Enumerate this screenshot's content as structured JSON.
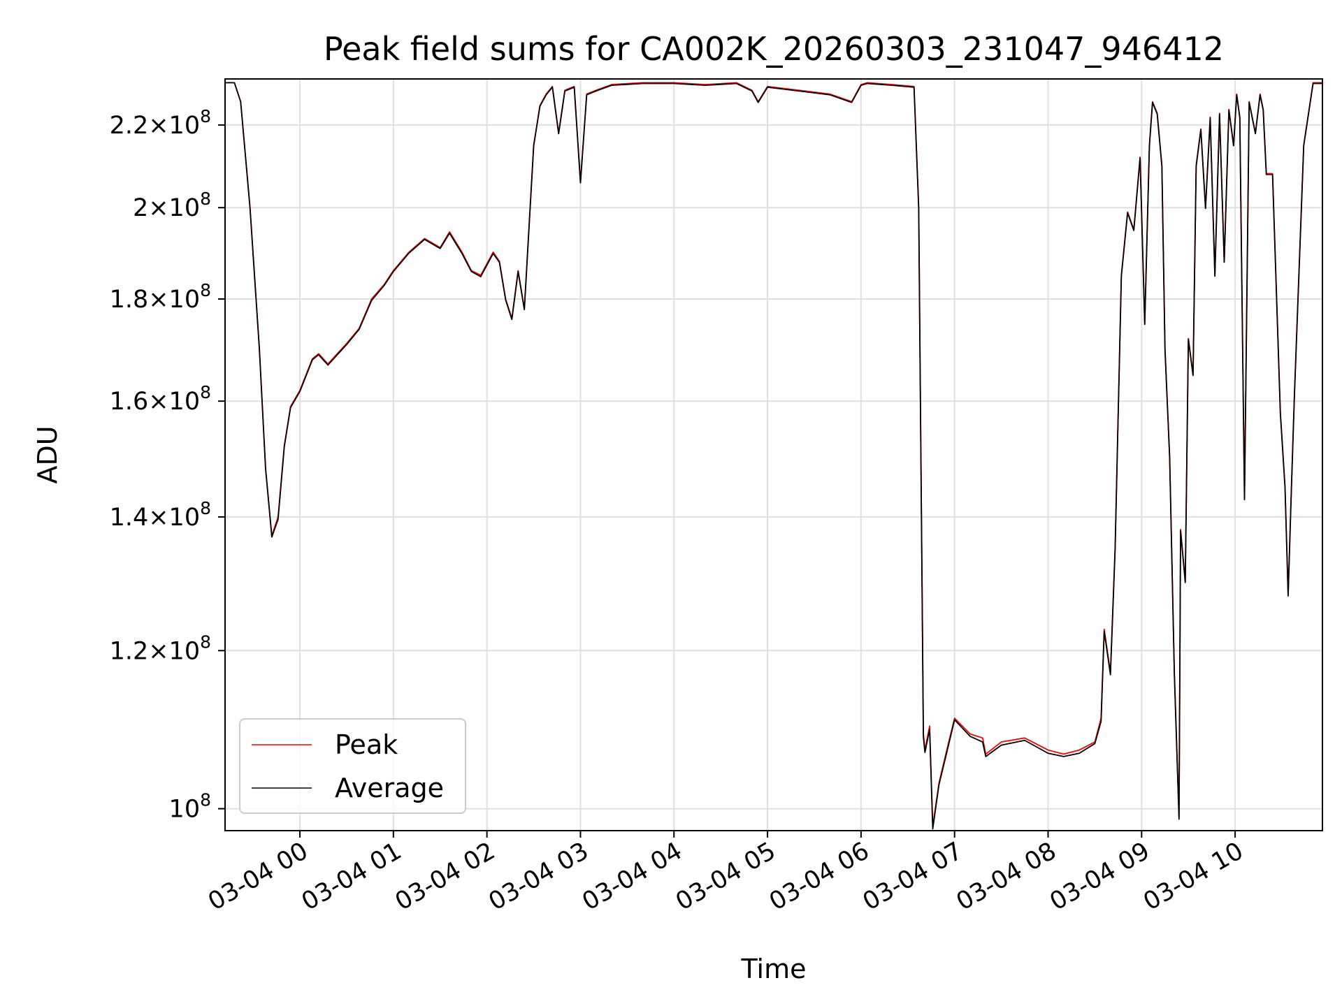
{
  "chart_data": {
    "type": "line",
    "title": "Peak field sums for CA002K_20260303_231047_946412",
    "xlabel": "Time",
    "ylabel": "ADU",
    "y_scale": "log",
    "ylim": [
      97500000,
      232000000
    ],
    "xlim": [
      "2026-03-03 23:12",
      "2026-03-04 10:56"
    ],
    "grid": true,
    "legend_position": "lower-left",
    "x_ticks": [
      "03-04 00",
      "03-04 01",
      "03-04 02",
      "03-04 03",
      "03-04 04",
      "03-04 05",
      "03-04 06",
      "03-04 07",
      "03-04 08",
      "03-04 09",
      "03-04 10"
    ],
    "x_tick_times": [
      "2026-03-04 00:00",
      "2026-03-04 01:00",
      "2026-03-04 02:00",
      "2026-03-04 03:00",
      "2026-03-04 04:00",
      "2026-03-04 05:00",
      "2026-03-04 06:00",
      "2026-03-04 07:00",
      "2026-03-04 08:00",
      "2026-03-04 09:00",
      "2026-03-04 10:00"
    ],
    "y_ticks": [
      {
        "value": 100000000,
        "mantissa": "",
        "exponent": "8"
      },
      {
        "value": 120000000,
        "mantissa": "1.2",
        "exponent": "8"
      },
      {
        "value": 140000000,
        "mantissa": "1.4",
        "exponent": "8"
      },
      {
        "value": 160000000,
        "mantissa": "1.6",
        "exponent": "8"
      },
      {
        "value": 180000000,
        "mantissa": "1.8",
        "exponent": "8"
      },
      {
        "value": 200000000,
        "mantissa": "2",
        "exponent": "8"
      },
      {
        "value": 220000000,
        "mantissa": "2.2",
        "exponent": "8"
      }
    ],
    "series": [
      {
        "name": "Peak",
        "color": "#ff0000",
        "x": [
          "2026-03-03 23:12",
          "2026-03-03 23:18",
          "2026-03-03 23:22",
          "2026-03-03 23:28",
          "2026-03-03 23:34",
          "2026-03-03 23:38",
          "2026-03-03 23:42",
          "2026-03-03 23:46",
          "2026-03-03 23:50",
          "2026-03-03 23:54",
          "2026-03-04 00:00",
          "2026-03-04 00:08",
          "2026-03-04 00:12",
          "2026-03-04 00:18",
          "2026-03-04 00:24",
          "2026-03-04 00:30",
          "2026-03-04 00:38",
          "2026-03-04 00:46",
          "2026-03-04 00:54",
          "2026-03-04 01:00",
          "2026-03-04 01:10",
          "2026-03-04 01:20",
          "2026-03-04 01:30",
          "2026-03-04 01:36",
          "2026-03-04 01:44",
          "2026-03-04 01:50",
          "2026-03-04 01:56",
          "2026-03-04 02:04",
          "2026-03-04 02:08",
          "2026-03-04 02:12",
          "2026-03-04 02:16",
          "2026-03-04 02:20",
          "2026-03-04 02:24",
          "2026-03-04 02:30",
          "2026-03-04 02:34",
          "2026-03-04 02:38",
          "2026-03-04 02:42",
          "2026-03-04 02:46",
          "2026-03-04 02:50",
          "2026-03-04 02:56",
          "2026-03-04 03:00",
          "2026-03-04 03:04",
          "2026-03-04 03:10",
          "2026-03-04 03:20",
          "2026-03-04 03:40",
          "2026-03-04 04:00",
          "2026-03-04 04:20",
          "2026-03-04 04:40",
          "2026-03-04 04:50",
          "2026-03-04 04:54",
          "2026-03-04 05:00",
          "2026-03-04 05:20",
          "2026-03-04 05:40",
          "2026-03-04 05:54",
          "2026-03-04 06:00",
          "2026-03-04 06:04",
          "2026-03-04 06:20",
          "2026-03-04 06:34",
          "2026-03-04 06:37",
          "2026-03-04 06:40",
          "2026-03-04 06:41",
          "2026-03-04 06:44",
          "2026-03-04 06:46",
          "2026-03-04 06:50",
          "2026-03-04 06:55",
          "2026-03-04 07:00",
          "2026-03-04 07:10",
          "2026-03-04 07:18",
          "2026-03-04 07:20",
          "2026-03-04 07:30",
          "2026-03-04 07:45",
          "2026-03-04 08:00",
          "2026-03-04 08:10",
          "2026-03-04 08:20",
          "2026-03-04 08:30",
          "2026-03-04 08:34",
          "2026-03-04 08:36",
          "2026-03-04 08:40",
          "2026-03-04 08:43",
          "2026-03-04 08:47",
          "2026-03-04 08:51",
          "2026-03-04 08:55",
          "2026-03-04 08:59",
          "2026-03-04 09:02",
          "2026-03-04 09:05",
          "2026-03-04 09:07",
          "2026-03-04 09:10",
          "2026-03-04 09:13",
          "2026-03-04 09:15",
          "2026-03-04 09:18",
          "2026-03-04 09:21",
          "2026-03-04 09:24",
          "2026-03-04 09:25",
          "2026-03-04 09:28",
          "2026-03-04 09:30",
          "2026-03-04 09:33",
          "2026-03-04 09:35",
          "2026-03-04 09:38",
          "2026-03-04 09:41",
          "2026-03-04 09:44",
          "2026-03-04 09:47",
          "2026-03-04 09:50",
          "2026-03-04 09:53",
          "2026-03-04 09:56",
          "2026-03-04 09:59",
          "2026-03-04 10:01",
          "2026-03-04 10:03",
          "2026-03-04 10:06",
          "2026-03-04 10:09",
          "2026-03-04 10:13",
          "2026-03-04 10:16",
          "2026-03-04 10:18",
          "2026-03-04 10:20",
          "2026-03-04 10:24",
          "2026-03-04 10:29",
          "2026-03-04 10:32",
          "2026-03-04 10:34",
          "2026-03-04 10:36",
          "2026-03-04 10:38",
          "2026-03-04 10:44",
          "2026-03-04 10:50",
          "2026-03-04 10:56"
        ],
        "y": [
          231000000,
          231000000,
          226000000,
          200000000,
          170000000,
          148000000,
          137000000,
          140000000,
          152000000,
          159000000,
          162000000,
          168000000,
          169000000,
          167000000,
          169000000,
          171000000,
          174000000,
          180000000,
          183000000,
          186000000,
          190000000,
          193000000,
          191000000,
          194500000,
          190000000,
          186000000,
          185000000,
          190000000,
          188000000,
          180000000,
          176000000,
          186000000,
          178000000,
          215000000,
          225000000,
          228000000,
          230000000,
          218000000,
          229000000,
          230000000,
          206000000,
          228000000,
          229000000,
          230500000,
          231000000,
          231000000,
          230500000,
          231000000,
          229000000,
          226000000,
          230000000,
          229000000,
          228000000,
          226000000,
          230500000,
          231000000,
          230500000,
          230000000,
          200000000,
          109000000,
          107000000,
          110000000,
          98000000,
          103000000,
          107000000,
          111000000,
          109000000,
          108500000,
          106500000,
          108000000,
          108500000,
          107000000,
          106500000,
          107000000,
          108000000,
          111000000,
          123000000,
          117000000,
          135000000,
          185000000,
          199000000,
          195000000,
          212000000,
          175000000,
          215000000,
          226000000,
          223000000,
          210000000,
          170000000,
          150000000,
          117000000,
          99000000,
          138000000,
          130000000,
          172000000,
          165000000,
          210000000,
          219000000,
          200000000,
          222000000,
          185000000,
          223000000,
          188000000,
          224000000,
          215000000,
          228000000,
          222000000,
          143000000,
          226000000,
          218000000,
          228000000,
          224000000,
          208000000,
          208000000,
          158000000,
          145000000,
          128000000,
          144000000,
          161000000,
          215000000,
          231000000,
          231000000
        ]
      },
      {
        "name": "Average",
        "color": "#000000",
        "x": [
          "2026-03-03 23:12",
          "2026-03-03 23:18",
          "2026-03-03 23:22",
          "2026-03-03 23:28",
          "2026-03-03 23:34",
          "2026-03-03 23:38",
          "2026-03-03 23:42",
          "2026-03-03 23:46",
          "2026-03-03 23:50",
          "2026-03-03 23:54",
          "2026-03-04 00:00",
          "2026-03-04 00:08",
          "2026-03-04 00:12",
          "2026-03-04 00:18",
          "2026-03-04 00:24",
          "2026-03-04 00:30",
          "2026-03-04 00:38",
          "2026-03-04 00:46",
          "2026-03-04 00:54",
          "2026-03-04 01:00",
          "2026-03-04 01:10",
          "2026-03-04 01:20",
          "2026-03-04 01:30",
          "2026-03-04 01:36",
          "2026-03-04 01:44",
          "2026-03-04 01:50",
          "2026-03-04 01:56",
          "2026-03-04 02:04",
          "2026-03-04 02:08",
          "2026-03-04 02:12",
          "2026-03-04 02:16",
          "2026-03-04 02:20",
          "2026-03-04 02:24",
          "2026-03-04 02:30",
          "2026-03-04 02:34",
          "2026-03-04 02:38",
          "2026-03-04 02:42",
          "2026-03-04 02:46",
          "2026-03-04 02:50",
          "2026-03-04 02:56",
          "2026-03-04 03:00",
          "2026-03-04 03:04",
          "2026-03-04 03:10",
          "2026-03-04 03:20",
          "2026-03-04 03:40",
          "2026-03-04 04:00",
          "2026-03-04 04:20",
          "2026-03-04 04:40",
          "2026-03-04 04:50",
          "2026-03-04 04:54",
          "2026-03-04 05:00",
          "2026-03-04 05:20",
          "2026-03-04 05:40",
          "2026-03-04 05:54",
          "2026-03-04 06:00",
          "2026-03-04 06:04",
          "2026-03-04 06:20",
          "2026-03-04 06:34",
          "2026-03-04 06:37",
          "2026-03-04 06:40",
          "2026-03-04 06:41",
          "2026-03-04 06:44",
          "2026-03-04 06:46",
          "2026-03-04 06:50",
          "2026-03-04 06:55",
          "2026-03-04 07:00",
          "2026-03-04 07:10",
          "2026-03-04 07:18",
          "2026-03-04 07:20",
          "2026-03-04 07:30",
          "2026-03-04 07:45",
          "2026-03-04 08:00",
          "2026-03-04 08:10",
          "2026-03-04 08:20",
          "2026-03-04 08:30",
          "2026-03-04 08:34",
          "2026-03-04 08:36",
          "2026-03-04 08:40",
          "2026-03-04 08:43",
          "2026-03-04 08:47",
          "2026-03-04 08:51",
          "2026-03-04 08:55",
          "2026-03-04 08:59",
          "2026-03-04 09:02",
          "2026-03-04 09:05",
          "2026-03-04 09:07",
          "2026-03-04 09:10",
          "2026-03-04 09:13",
          "2026-03-04 09:15",
          "2026-03-04 09:18",
          "2026-03-04 09:21",
          "2026-03-04 09:24",
          "2026-03-04 09:25",
          "2026-03-04 09:28",
          "2026-03-04 09:30",
          "2026-03-04 09:33",
          "2026-03-04 09:35",
          "2026-03-04 09:38",
          "2026-03-04 09:41",
          "2026-03-04 09:44",
          "2026-03-04 09:47",
          "2026-03-04 09:50",
          "2026-03-04 09:53",
          "2026-03-04 09:56",
          "2026-03-04 09:59",
          "2026-03-04 10:01",
          "2026-03-04 10:03",
          "2026-03-04 10:06",
          "2026-03-04 10:09",
          "2026-03-04 10:13",
          "2026-03-04 10:16",
          "2026-03-04 10:18",
          "2026-03-04 10:20",
          "2026-03-04 10:24",
          "2026-03-04 10:29",
          "2026-03-04 10:32",
          "2026-03-04 10:34",
          "2026-03-04 10:36",
          "2026-03-04 10:38",
          "2026-03-04 10:44",
          "2026-03-04 10:50",
          "2026-03-04 10:56"
        ],
        "y": [
          231000000,
          231000000,
          226000000,
          200000000,
          170000000,
          148000000,
          136800000,
          139600000,
          151800000,
          158800000,
          161800000,
          167800000,
          168800000,
          166800000,
          168800000,
          170800000,
          173800000,
          179700000,
          182800000,
          185800000,
          189800000,
          192800000,
          190800000,
          194200000,
          189700000,
          185800000,
          184700000,
          189700000,
          187800000,
          179800000,
          175800000,
          185800000,
          177800000,
          214800000,
          224800000,
          227800000,
          229800000,
          217800000,
          228800000,
          229800000,
          205800000,
          227800000,
          228800000,
          230300000,
          230800000,
          230800000,
          230300000,
          230800000,
          228800000,
          225800000,
          229800000,
          228800000,
          227800000,
          225800000,
          230300000,
          230800000,
          230300000,
          229800000,
          199800000,
          108600000,
          106700000,
          109600000,
          97700000,
          102800000,
          106700000,
          110800000,
          108700000,
          108000000,
          106200000,
          107600000,
          108200000,
          106600000,
          106200000,
          106600000,
          107800000,
          110600000,
          122700000,
          116700000,
          134800000,
          184800000,
          198800000,
          194800000,
          211800000,
          174800000,
          214800000,
          225800000,
          222800000,
          209800000,
          169800000,
          149800000,
          116800000,
          98800000,
          137800000,
          129800000,
          171800000,
          164800000,
          209800000,
          218800000,
          199800000,
          221800000,
          184800000,
          222800000,
          187800000,
          223800000,
          214800000,
          227800000,
          221800000,
          142800000,
          225800000,
          217800000,
          227800000,
          223800000,
          207800000,
          207800000,
          157800000,
          144800000,
          127800000,
          143800000,
          160800000,
          214800000,
          230800000,
          230800000
        ]
      }
    ]
  }
}
